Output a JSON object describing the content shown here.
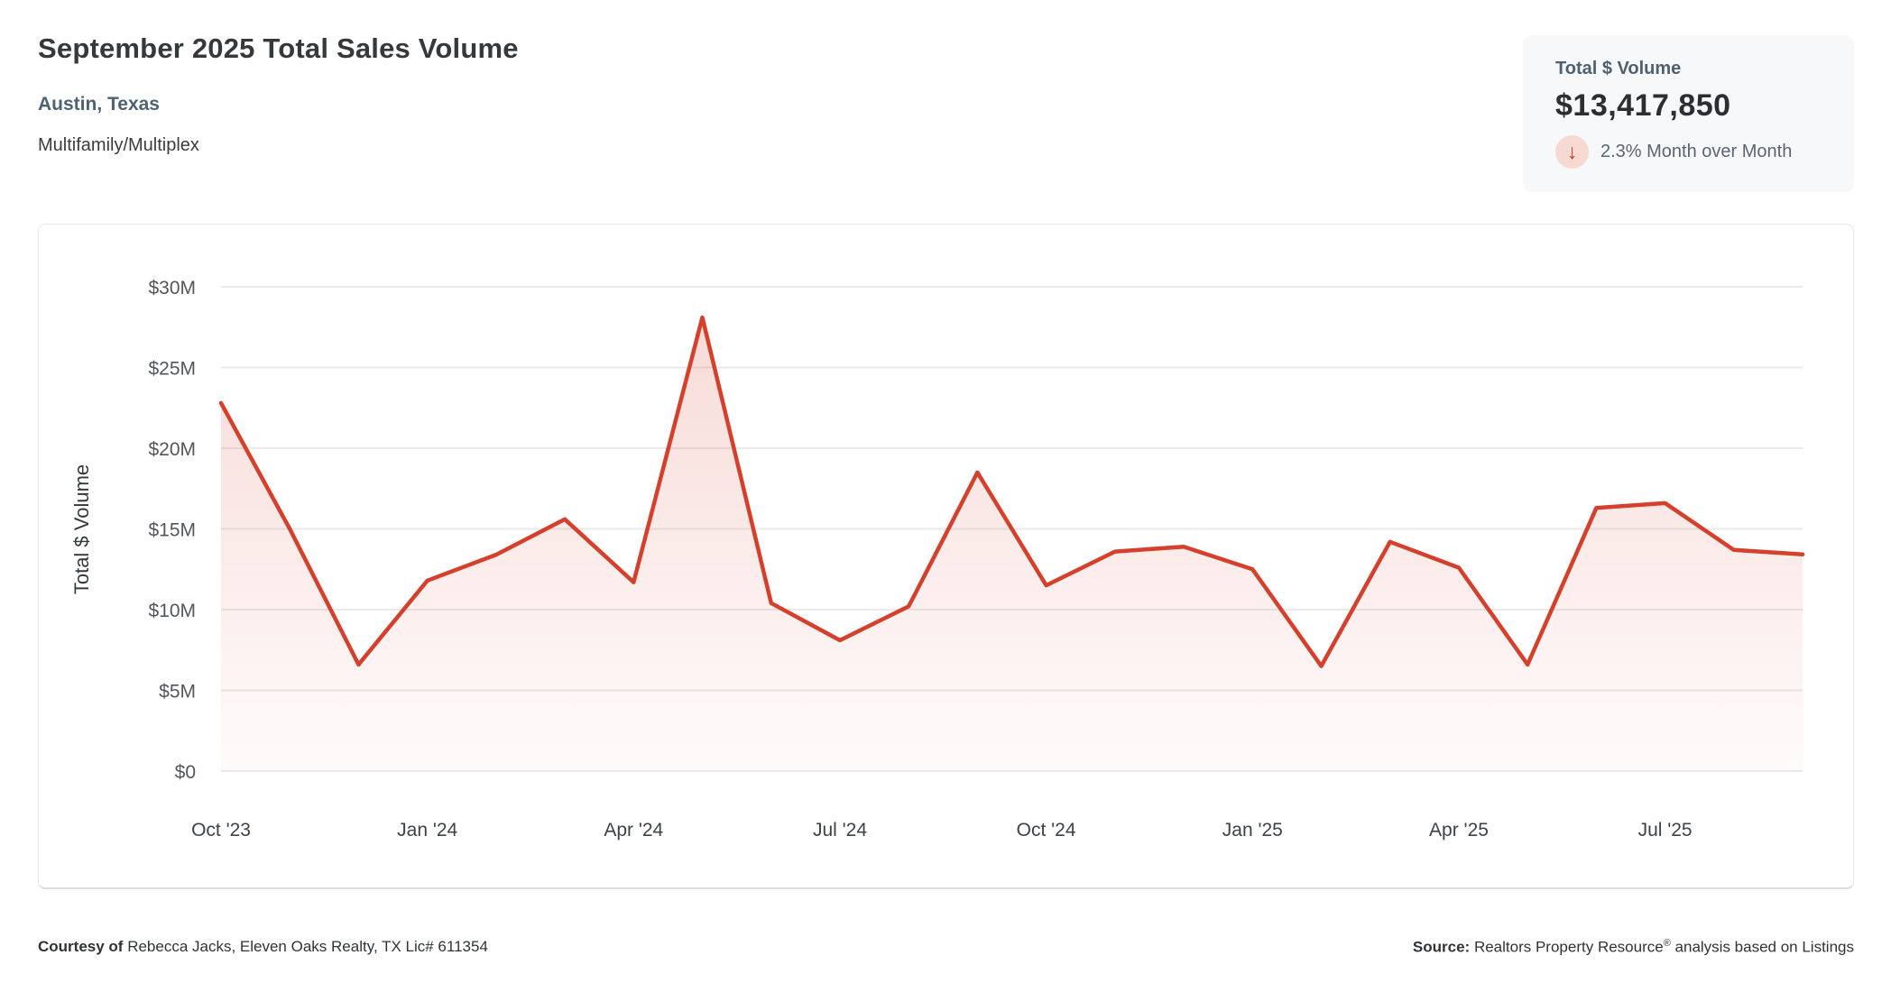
{
  "header": {
    "title": "September 2025 Total Sales Volume",
    "subtitle": "Austin, Texas",
    "property_type": "Multifamily/Multiplex"
  },
  "stat_card": {
    "label": "Total $ Volume",
    "value": "$13,417,850",
    "direction": "down",
    "arrow_glyph": "↓",
    "change_text": "2.3% Month over Month"
  },
  "footer": {
    "courtesy_label": "Courtesy of",
    "courtesy_text": " Rebecca Jacks, Eleven Oaks Realty, TX Lic# 611354",
    "source_label": "Source:",
    "source_text_pre": " Realtors Property Resource",
    "source_reg_mark": "®",
    "source_text_post": " analysis based on Listings"
  },
  "colors": {
    "line": "#d5402c",
    "area_fill_base": "213,64,44",
    "area_fill_top_opacity": 0.2,
    "area_fill_bottom_opacity": 0.02,
    "grid": "#e9eaeb",
    "y_tick_text": "#53575c",
    "x_tick_text": "#3e4247",
    "axis_title_text": "#36393c",
    "accent_red": "#c23d2b",
    "arrow_circle_bg": "#f7d9d1"
  },
  "chart_data": {
    "type": "area",
    "title": "September 2025 Total Sales Volume",
    "x": [
      "Oct '23",
      "Nov '23",
      "Dec '23",
      "Jan '24",
      "Feb '24",
      "Mar '24",
      "Apr '24",
      "May '24",
      "Jun '24",
      "Jul '24",
      "Aug '24",
      "Sep '24",
      "Oct '24",
      "Nov '24",
      "Dec '24",
      "Jan '25",
      "Feb '25",
      "Mar '25",
      "Apr '25",
      "May '25",
      "Jun '25",
      "Jul '25",
      "Aug '25",
      "Sep '25"
    ],
    "values": [
      22.8,
      15.0,
      6.6,
      11.8,
      13.4,
      15.6,
      11.7,
      28.1,
      10.4,
      8.1,
      10.2,
      18.5,
      11.5,
      13.6,
      13.9,
      12.5,
      6.5,
      14.2,
      12.6,
      6.6,
      16.3,
      16.6,
      13.7,
      13.42
    ],
    "units": "millions USD",
    "last_point_exact": "$13,417,850",
    "x_tick_every": 3,
    "x_tick_labels": [
      "Oct '23",
      "Jan '24",
      "Apr '24",
      "Jul '24",
      "Oct '24",
      "Jan '25",
      "Apr '25",
      "Jul '25"
    ],
    "y_ticks": [
      "$0",
      "$5M",
      "$10M",
      "$15M",
      "$20M",
      "$25M",
      "$30M"
    ],
    "y_tick_values": [
      0,
      5,
      10,
      15,
      20,
      25,
      30
    ],
    "ylabel": "Total $ Volume",
    "xlabel": "",
    "ylim": [
      0,
      30
    ],
    "grid": true,
    "legend": "none"
  }
}
